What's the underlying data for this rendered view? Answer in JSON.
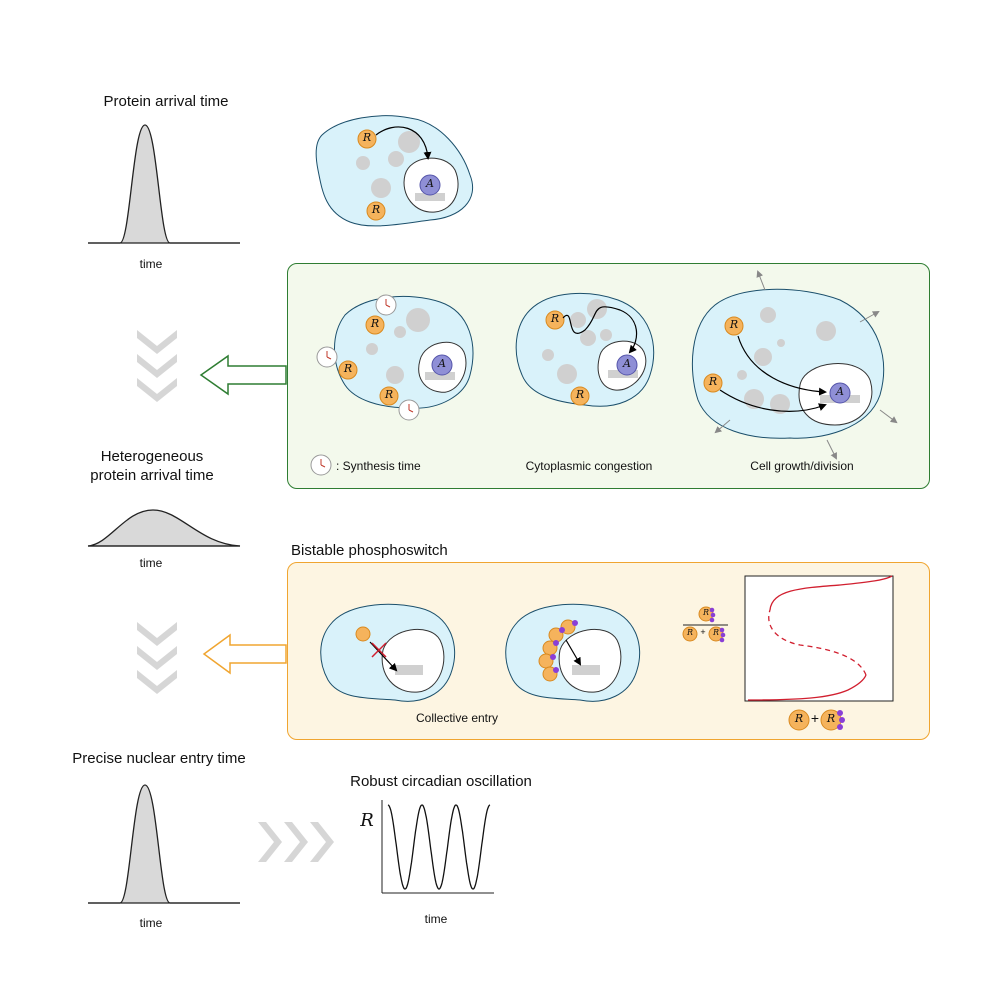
{
  "labels": {
    "protein_arrival_time": "Protein arrival time",
    "heterogeneous_line1": "Heterogeneous",
    "heterogeneous_line2": "protein arrival time",
    "precise_nuclear_entry_time": "Precise nuclear entry time",
    "robust_circadian_oscillation": "Robust circadian oscillation",
    "bistable_phosphoswitch": "Bistable phosphoswitch",
    "synthesis_time": ": Synthesis time",
    "cytoplasmic_congestion": "Cytoplasmic congestion",
    "cell_growth_division": "Cell growth/division",
    "collective_entry": "Collective entry",
    "time": "time",
    "R": "R",
    "A": "A",
    "plus": "+"
  },
  "colors": {
    "cell_fill": "#d9f2fa",
    "nucleus_fill": "#ffffff",
    "protein_orange": "#f5b35c",
    "activator_purple": "#7f7fd1",
    "phospho_purple": "#8a3fd6",
    "curve_red": "#d11f2f",
    "green_border": "#2e7d32",
    "orange_border": "#f0a530",
    "chevron_gray": "#d6d6d6"
  }
}
